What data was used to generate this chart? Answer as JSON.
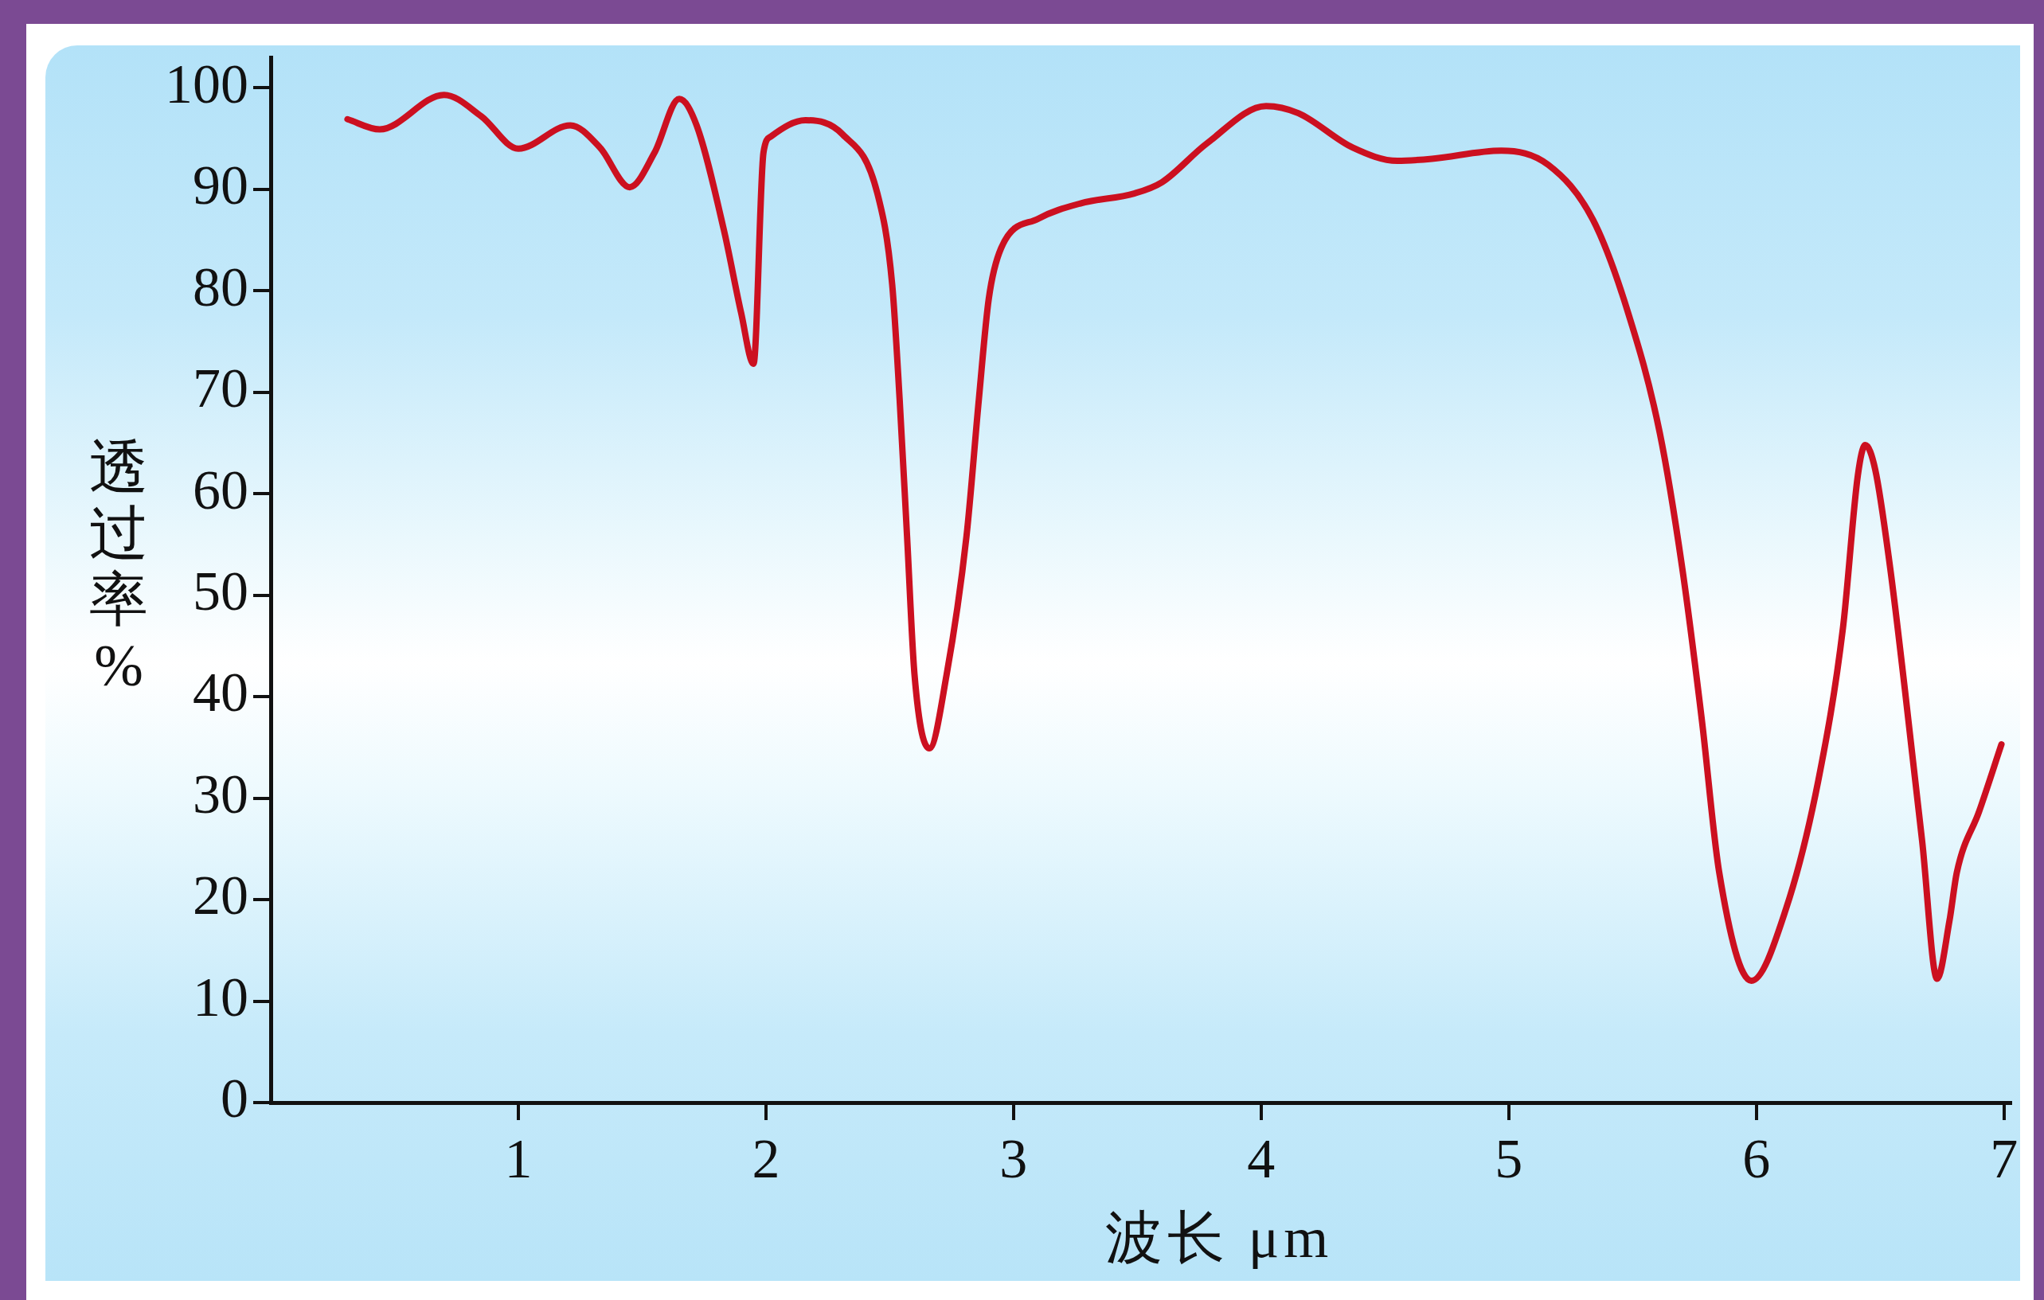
{
  "chart_data": {
    "type": "line",
    "xlabel": "波长 μm",
    "ylabel": "透过率%",
    "x": [
      0.31,
      0.44,
      0.7,
      0.85,
      1.0,
      1.21,
      1.33,
      1.45,
      1.55,
      1.65,
      1.72,
      1.83,
      1.9,
      1.95,
      1.99,
      2.02,
      2.16,
      2.31,
      2.45,
      2.51,
      2.54,
      2.57,
      2.6,
      2.66,
      2.73,
      2.81,
      2.86,
      2.9,
      2.95,
      3.1,
      3.27,
      3.49,
      3.6,
      3.78,
      4.02,
      4.15,
      4.37,
      4.55,
      4.69,
      4.97,
      5.16,
      5.34,
      5.48,
      5.61,
      5.7,
      5.78,
      5.85,
      5.98,
      6.12,
      6.25,
      6.35,
      6.41,
      6.44,
      6.48,
      6.54,
      6.6,
      6.67,
      6.73,
      6.78,
      6.81,
      6.9,
      6.99
    ],
    "series": [
      {
        "color": "#cc1020",
        "values": [
          96.9,
          95.9,
          99.3,
          97.2,
          94.0,
          96.3,
          94.1,
          90.2,
          93.6,
          98.9,
          96.3,
          86.0,
          77.8,
          72.8,
          93.6,
          95.2,
          96.8,
          95.4,
          89.6,
          80.6,
          69.3,
          55.8,
          42.2,
          34.9,
          42.2,
          55.8,
          69.3,
          79.2,
          84.2,
          87.1,
          88.6,
          89.6,
          90.7,
          94.5,
          98.2,
          97.5,
          94.1,
          92.8,
          93.0,
          93.8,
          92.4,
          87.0,
          78.0,
          66.0,
          52.8,
          37.7,
          22.7,
          12.0,
          19.1,
          31.7,
          46.8,
          61.8,
          64.8,
          62.4,
          52.8,
          40.7,
          25.7,
          12.2,
          17.9,
          22.7,
          28.7,
          35.3
        ]
      }
    ],
    "xlim": [
      0,
      7.03
    ],
    "ylim": [
      0,
      103
    ],
    "xticks": [
      1,
      2,
      3,
      4,
      5,
      6,
      7
    ],
    "yticks": [
      0,
      10,
      20,
      30,
      40,
      50,
      60,
      70,
      80,
      90,
      100
    ],
    "grid": false,
    "legend": false,
    "marker": "none",
    "line_style": "solid"
  }
}
